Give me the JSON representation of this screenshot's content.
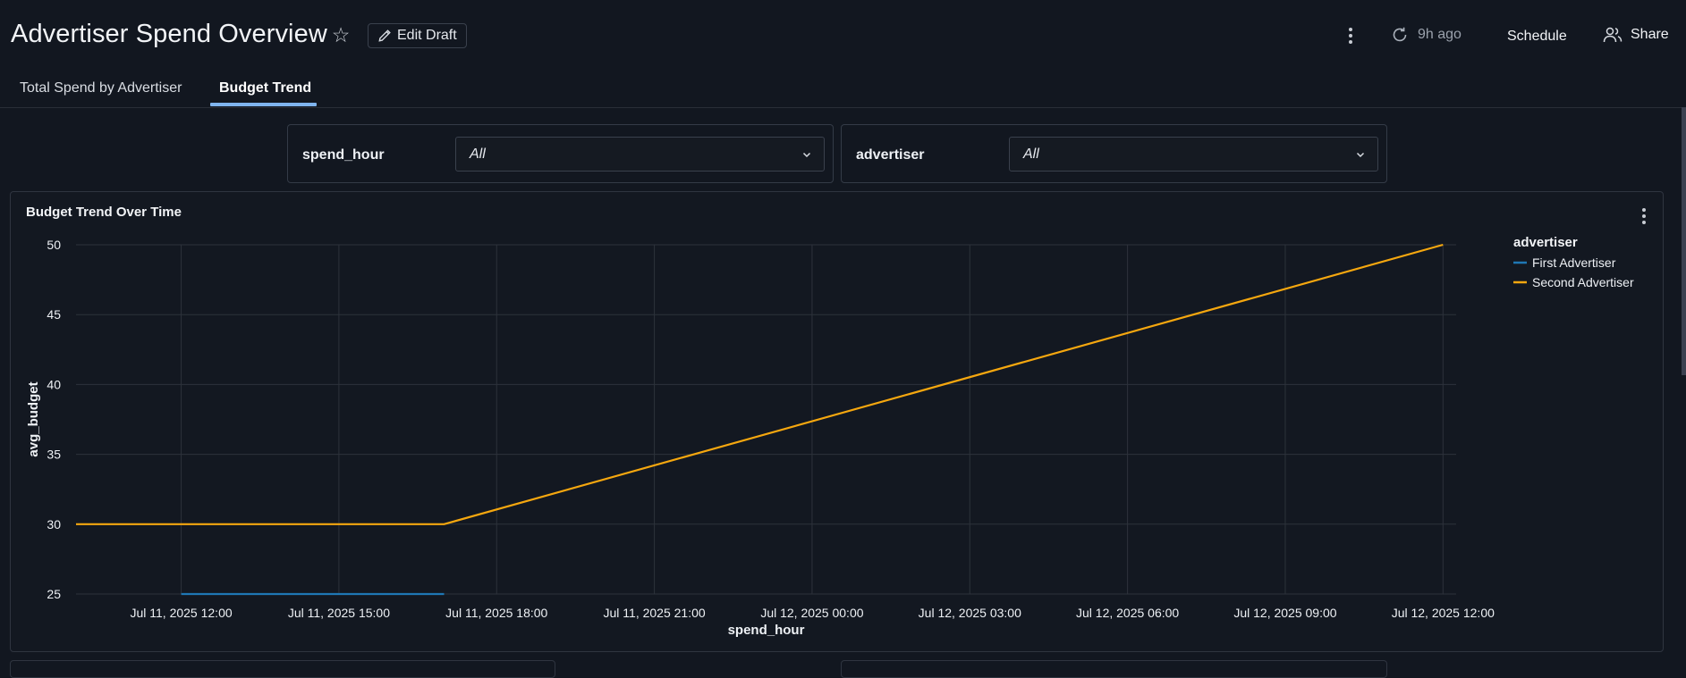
{
  "header": {
    "title": "Advertiser Spend Overview",
    "edit_label": "Edit Draft",
    "refresh_label": "9h ago",
    "schedule_label": "Schedule",
    "share_label": "Share"
  },
  "tabs": [
    {
      "label": "Total Spend by Advertiser",
      "active": false
    },
    {
      "label": "Budget Trend",
      "active": true
    }
  ],
  "filters": [
    {
      "label": "spend_hour",
      "value": "All"
    },
    {
      "label": "advertiser",
      "value": "All"
    }
  ],
  "panel": {
    "title": "Budget Trend Over Time"
  },
  "colors": {
    "accent": "#7fb4ee",
    "first_advertiser": "#1f77b4",
    "second_advertiser": "#f5a70f"
  },
  "chart_data": {
    "type": "line",
    "title": "Budget Trend Over Time",
    "xlabel": "spend_hour",
    "ylabel": "avg_budget",
    "ylim": [
      25,
      50
    ],
    "yticks": [
      25,
      30,
      35,
      40,
      45,
      50
    ],
    "xticks": [
      "Jul 11, 2025 12:00",
      "Jul 11, 2025 15:00",
      "Jul 11, 2025 18:00",
      "Jul 11, 2025 21:00",
      "Jul 12, 2025 00:00",
      "Jul 12, 2025 03:00",
      "Jul 12, 2025 06:00",
      "Jul 12, 2025 09:00",
      "Jul 12, 2025 12:00"
    ],
    "xlim": [
      "Jul 11, 2025 10:00",
      "Jul 12, 2025 12:15"
    ],
    "grid": true,
    "legend": {
      "title": "advertiser",
      "position": "right"
    },
    "series": [
      {
        "name": "First Advertiser",
        "color": "#1f77b4",
        "x": [
          "Jul 11, 2025 12:00",
          "Jul 11, 2025 17:00"
        ],
        "y": [
          25,
          25
        ]
      },
      {
        "name": "Second Advertiser",
        "color": "#f5a70f",
        "x": [
          "Jul 11, 2025 10:00",
          "Jul 11, 2025 17:00",
          "Jul 12, 2025 12:00"
        ],
        "y": [
          30,
          30,
          50
        ]
      }
    ]
  }
}
